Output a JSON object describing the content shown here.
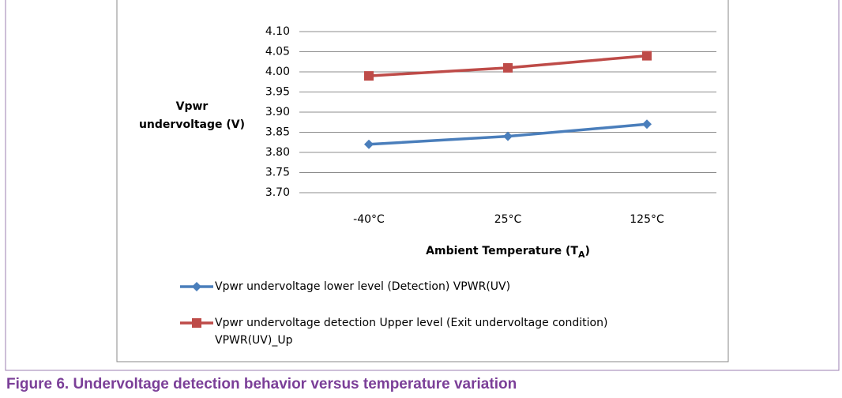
{
  "chart_data": {
    "type": "line",
    "ylabel": [
      "Vpwr",
      "undervoltage (V)"
    ],
    "xlabel": [
      "Ambient Temperature  (T",
      "A",
      ")"
    ],
    "categories": [
      "-40°C",
      "25°C",
      "125°C"
    ],
    "series": [
      {
        "name": "Vpwr undervoltage lower level (Detection) VPWR(UV)",
        "color": "#4a7ebb",
        "marker": "diamond",
        "values": [
          3.82,
          3.84,
          3.87
        ]
      },
      {
        "name": "Vpwr undervoltage detection Upper level (Exit undervoltage condition) VPWR(UV)_Up",
        "color": "#be4b48",
        "marker": "square",
        "values": [
          3.99,
          4.01,
          4.04
        ]
      }
    ],
    "ylim": [
      3.7,
      4.1
    ],
    "yticks": [
      {
        "value": 3.7,
        "label": "3.70"
      },
      {
        "value": 3.75,
        "label": "3.75"
      },
      {
        "value": 3.8,
        "label": "3.80"
      },
      {
        "value": 3.85,
        "label": "3.85"
      },
      {
        "value": 3.9,
        "label": "3.90"
      },
      {
        "value": 3.95,
        "label": "3.95"
      },
      {
        "value": 4.0,
        "label": "4.00"
      },
      {
        "value": 4.05,
        "label": "4.05"
      },
      {
        "value": 4.1,
        "label": "4.10"
      }
    ],
    "grid": true,
    "caption": "Figure 6. Undervoltage detection behavior versus temperature variation"
  }
}
